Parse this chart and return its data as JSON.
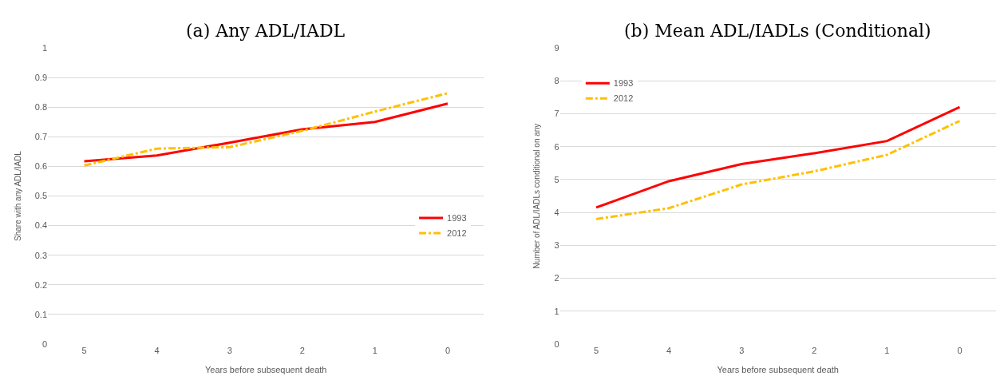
{
  "chart_data": [
    {
      "type": "line",
      "title": "(a) Any ADL/IADL",
      "xlabel": "Years before subsequent death",
      "ylabel": "Share with any ADL/IADL",
      "categories": [
        "5",
        "4",
        "3",
        "2",
        "1",
        "0"
      ],
      "series": [
        {
          "name": "1993",
          "color": "#ff0000",
          "line_style": "solid",
          "values": [
            0.617,
            0.637,
            0.68,
            0.725,
            0.75,
            0.812
          ]
        },
        {
          "name": "2012",
          "color": "#ffc000",
          "line_style": "dashed",
          "values": [
            0.603,
            0.66,
            0.665,
            0.72,
            0.785,
            0.847
          ]
        }
      ],
      "ylim": [
        0,
        1
      ],
      "yticks": [
        0,
        0.1,
        0.2,
        0.3,
        0.4,
        0.5,
        0.6,
        0.7,
        0.8,
        0.9,
        1
      ],
      "grid": "y",
      "legend": "right",
      "marker": "none"
    },
    {
      "type": "line",
      "title": "(b) Mean ADL/IADLs (Conditional)",
      "xlabel": "Years before subsequent death",
      "ylabel": "Number of ADL/IADLs conditional on any",
      "categories": [
        "5",
        "4",
        "3",
        "2",
        "1",
        "0"
      ],
      "series": [
        {
          "name": "1993",
          "color": "#ff0000",
          "line_style": "solid",
          "values": [
            4.15,
            4.95,
            5.47,
            5.8,
            6.17,
            7.2
          ]
        },
        {
          "name": "2012",
          "color": "#ffc000",
          "line_style": "dashed",
          "values": [
            3.8,
            4.13,
            4.85,
            5.25,
            5.75,
            6.78
          ]
        }
      ],
      "ylim": [
        0,
        9
      ],
      "yticks": [
        0,
        1,
        2,
        3,
        4,
        5,
        6,
        7,
        8,
        9
      ],
      "grid": "y",
      "legend": "top left",
      "marker": "none"
    }
  ]
}
